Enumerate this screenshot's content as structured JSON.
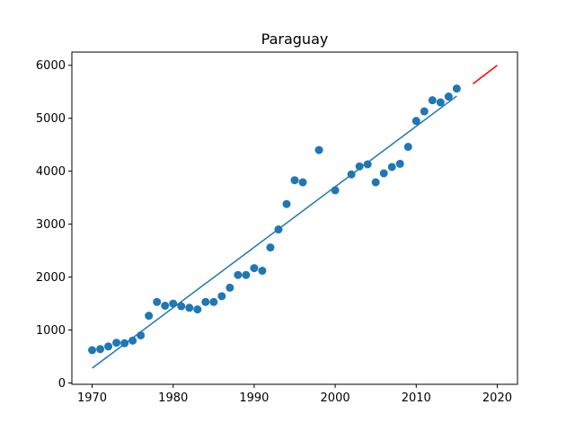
{
  "chart_data": {
    "type": "scatter",
    "title": "Paraguay",
    "xlabel": "",
    "ylabel": "",
    "xlim": [
      1967.5,
      2022.5
    ],
    "ylim": [
      -25,
      6250
    ],
    "xticks": [
      1970,
      1980,
      1990,
      2000,
      2010,
      2020
    ],
    "yticks": [
      0,
      1000,
      2000,
      3000,
      4000,
      5000,
      6000
    ],
    "grid": false,
    "series": [
      {
        "type": "scatter",
        "color": "#1f77b4",
        "x": [
          1970,
          1971,
          1972,
          1973,
          1974,
          1975,
          1976,
          1977,
          1978,
          1979,
          1980,
          1981,
          1982,
          1983,
          1984,
          1985,
          1986,
          1987,
          1988,
          1989,
          1990,
          1991,
          1992,
          1993,
          1994,
          1995,
          1996,
          1998,
          2000,
          2002,
          2003,
          2004,
          2005,
          2006,
          2007,
          2008,
          2009,
          2010,
          2011,
          2012,
          2013,
          2014,
          2015
        ],
        "y": [
          620,
          640,
          690,
          760,
          750,
          800,
          900,
          1270,
          1530,
          1460,
          1500,
          1450,
          1420,
          1390,
          1530,
          1530,
          1640,
          1800,
          2040,
          2040,
          2170,
          2120,
          2560,
          2900,
          3380,
          3830,
          3790,
          4400,
          3640,
          3940,
          4090,
          4130,
          3790,
          3960,
          4080,
          4140,
          4460,
          4950,
          5130,
          5340,
          5300,
          5410,
          5560
        ]
      },
      {
        "type": "line",
        "color": "#1f77b4",
        "x": [
          1970,
          2015
        ],
        "y": [
          280,
          5420
        ]
      },
      {
        "type": "line",
        "color": "#ff0000",
        "x": [
          2017,
          2020
        ],
        "y": [
          5650,
          6000
        ]
      }
    ]
  }
}
